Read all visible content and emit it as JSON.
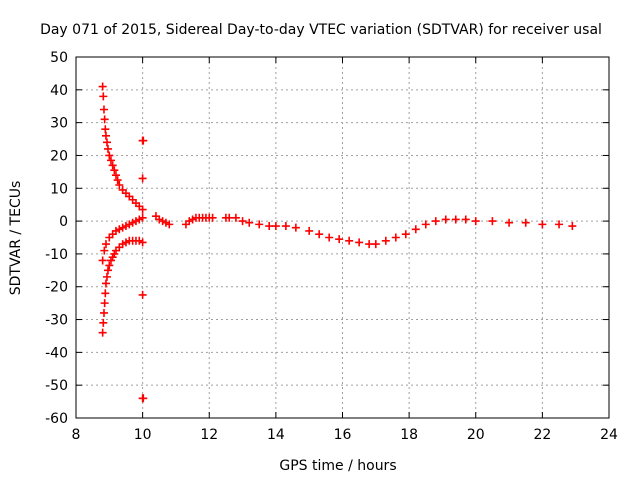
{
  "chart_data": {
    "type": "scatter",
    "title": "Day 071 of 2015, Sidereal Day-to-day VTEC variation (SDTVAR) for receiver usal",
    "xlabel": "GPS time / hours",
    "ylabel": "SDTVAR / TECUs",
    "xlim": [
      8,
      24
    ],
    "ylim": [
      -60,
      50
    ],
    "xticks": [
      8,
      10,
      12,
      14,
      16,
      18,
      20,
      22,
      24
    ],
    "yticks": [
      50,
      40,
      30,
      20,
      10,
      0,
      -10,
      -20,
      -30,
      -40,
      -50,
      -60
    ],
    "grid": true,
    "marker": "+",
    "series": [
      {
        "name": "SDTVAR",
        "color": "#ff0000",
        "points": [
          [
            8.8,
            41
          ],
          [
            8.82,
            38
          ],
          [
            8.84,
            34
          ],
          [
            8.86,
            31
          ],
          [
            8.88,
            28
          ],
          [
            8.9,
            26
          ],
          [
            8.93,
            24
          ],
          [
            8.96,
            22
          ],
          [
            9.0,
            20
          ],
          [
            9.05,
            18.5
          ],
          [
            9.1,
            17
          ],
          [
            9.15,
            15.5
          ],
          [
            9.2,
            14
          ],
          [
            9.25,
            12.5
          ],
          [
            9.3,
            11
          ],
          [
            9.4,
            9.5
          ],
          [
            9.5,
            8.5
          ],
          [
            9.6,
            7.5
          ],
          [
            9.7,
            6.5
          ],
          [
            9.8,
            5.5
          ],
          [
            9.9,
            4.5
          ],
          [
            10.0,
            3.5
          ],
          [
            8.8,
            -12
          ],
          [
            8.85,
            -9
          ],
          [
            8.9,
            -7
          ],
          [
            9.0,
            -5
          ],
          [
            9.1,
            -4
          ],
          [
            9.2,
            -3
          ],
          [
            9.3,
            -2.5
          ],
          [
            9.4,
            -2
          ],
          [
            9.5,
            -1.5
          ],
          [
            9.6,
            -1
          ],
          [
            9.7,
            -0.5
          ],
          [
            9.8,
            0
          ],
          [
            9.9,
            0.5
          ],
          [
            10.0,
            1
          ],
          [
            8.8,
            -34
          ],
          [
            8.82,
            -31
          ],
          [
            8.84,
            -28
          ],
          [
            8.86,
            -25
          ],
          [
            8.88,
            -22
          ],
          [
            8.9,
            -19
          ],
          [
            8.93,
            -17
          ],
          [
            8.96,
            -15
          ],
          [
            9.0,
            -13.5
          ],
          [
            9.05,
            -12
          ],
          [
            9.1,
            -11
          ],
          [
            9.15,
            -10
          ],
          [
            9.2,
            -9
          ],
          [
            9.3,
            -8
          ],
          [
            9.4,
            -7
          ],
          [
            9.5,
            -6.5
          ],
          [
            9.6,
            -6
          ],
          [
            9.7,
            -6
          ],
          [
            9.8,
            -6
          ],
          [
            9.9,
            -6
          ],
          [
            10.0,
            -6.5
          ],
          [
            10.0,
            24.5
          ],
          [
            10.02,
            24.5
          ],
          [
            10.0,
            13
          ],
          [
            10.0,
            -22.5
          ],
          [
            10.0,
            -54
          ],
          [
            10.02,
            -54
          ],
          [
            10.4,
            1.5
          ],
          [
            10.5,
            0.5
          ],
          [
            10.6,
            0
          ],
          [
            10.7,
            -0.5
          ],
          [
            10.8,
            -1
          ],
          [
            11.3,
            -1
          ],
          [
            11.4,
            0
          ],
          [
            11.5,
            0.5
          ],
          [
            11.6,
            1
          ],
          [
            11.7,
            1
          ],
          [
            11.8,
            1
          ],
          [
            11.9,
            1
          ],
          [
            12.0,
            1
          ],
          [
            12.1,
            1
          ],
          [
            12.5,
            1
          ],
          [
            12.6,
            1
          ],
          [
            12.8,
            1
          ],
          [
            13.0,
            0
          ],
          [
            13.2,
            -0.5
          ],
          [
            13.5,
            -1
          ],
          [
            13.8,
            -1.5
          ],
          [
            14.0,
            -1.5
          ],
          [
            14.3,
            -1.5
          ],
          [
            14.6,
            -2
          ],
          [
            15.0,
            -3
          ],
          [
            15.3,
            -4
          ],
          [
            15.6,
            -5
          ],
          [
            15.9,
            -5.5
          ],
          [
            16.2,
            -6
          ],
          [
            16.5,
            -6.5
          ],
          [
            16.8,
            -7
          ],
          [
            17.0,
            -7
          ],
          [
            17.3,
            -6
          ],
          [
            17.6,
            -5
          ],
          [
            17.9,
            -4
          ],
          [
            18.2,
            -2.5
          ],
          [
            18.5,
            -1
          ],
          [
            18.8,
            0
          ],
          [
            19.1,
            0.5
          ],
          [
            19.4,
            0.5
          ],
          [
            19.7,
            0.5
          ],
          [
            20.0,
            0
          ],
          [
            20.5,
            0
          ],
          [
            21.0,
            -0.5
          ],
          [
            21.5,
            -0.5
          ],
          [
            22.0,
            -1
          ],
          [
            22.5,
            -1
          ],
          [
            22.9,
            -1.5
          ]
        ]
      }
    ]
  }
}
